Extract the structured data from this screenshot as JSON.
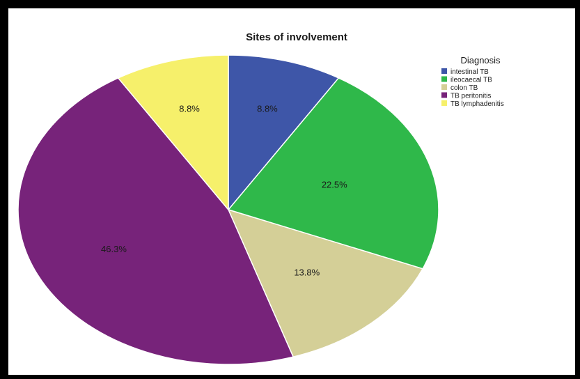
{
  "chart_data": {
    "type": "pie",
    "title": "Sites of involvement",
    "legend_title": "Diagnosis",
    "legend_position": "top-right",
    "start_angle_deg": 0,
    "direction": "clockwise",
    "slices": [
      {
        "name": "intestinal TB",
        "value": 8.8,
        "label": "8.8%",
        "color": "#3e56a8"
      },
      {
        "name": "ileocaecal TB",
        "value": 22.5,
        "label": "22.5%",
        "color": "#2fb84a"
      },
      {
        "name": "colon TB",
        "value": 13.8,
        "label": "13.8%",
        "color": "#d4cf97"
      },
      {
        "name": "TB peritonitis",
        "value": 46.3,
        "label": "46.3%",
        "color": "#77237a"
      },
      {
        "name": "TB lymphadenitis",
        "value": 8.8,
        "label": "8.8%",
        "color": "#f6f06b"
      }
    ]
  }
}
